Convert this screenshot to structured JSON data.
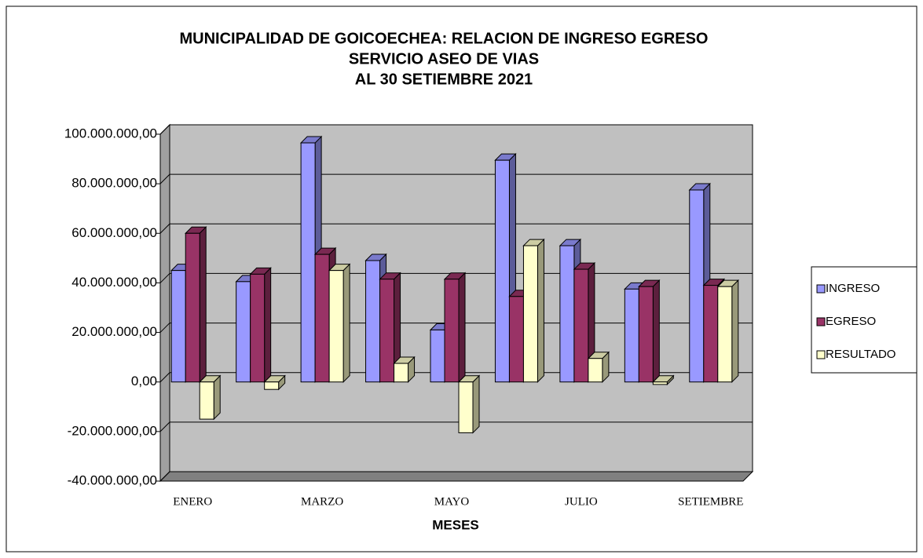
{
  "chart_data": {
    "type": "bar",
    "title": [
      "MUNICIPALIDAD DE GOICOECHEA:  RELACION DE INGRESO EGRESO",
      "SERVICIO ASEO DE VIAS",
      "AL 30 SETIEMBRE 2021"
    ],
    "x_label": "MESES",
    "categories": [
      "ENERO",
      null,
      "MARZO",
      null,
      "MAYO",
      null,
      "JULIO",
      null,
      "SETIEMBRE"
    ],
    "series": [
      {
        "name": "INGRESO",
        "color": "#9999ff",
        "values": [
          45000000,
          40500000,
          96500000,
          49000000,
          21000000,
          89500000,
          55000000,
          37500000,
          77500000
        ]
      },
      {
        "name": "EGRESO",
        "color": "#993366",
        "values": [
          60000000,
          43500000,
          51500000,
          41500000,
          41500000,
          34500000,
          45500000,
          38500000,
          39000000
        ]
      },
      {
        "name": "RESULTADO",
        "color": "#ffffcc",
        "values": [
          -15000000,
          -3000000,
          45000000,
          7500000,
          -20500000,
          55000000,
          9500000,
          -1000000,
          38500000
        ]
      }
    ],
    "ylim": [
      -40000000,
      100000000
    ],
    "yticks": [
      {
        "value": -40000000,
        "label": "-40.000.000,00"
      },
      {
        "value": -20000000,
        "label": "-20.000.000,00"
      },
      {
        "value": 0,
        "label": "0,00"
      },
      {
        "value": 20000000,
        "label": "20.000.000,00"
      },
      {
        "value": 40000000,
        "label": "40.000.000,00"
      },
      {
        "value": 60000000,
        "label": "60.000.000,00"
      },
      {
        "value": 80000000,
        "label": "80.000.000,00"
      },
      {
        "value": 100000000,
        "label": "100.000.000,00"
      }
    ],
    "grid": true,
    "legend": "right"
  }
}
